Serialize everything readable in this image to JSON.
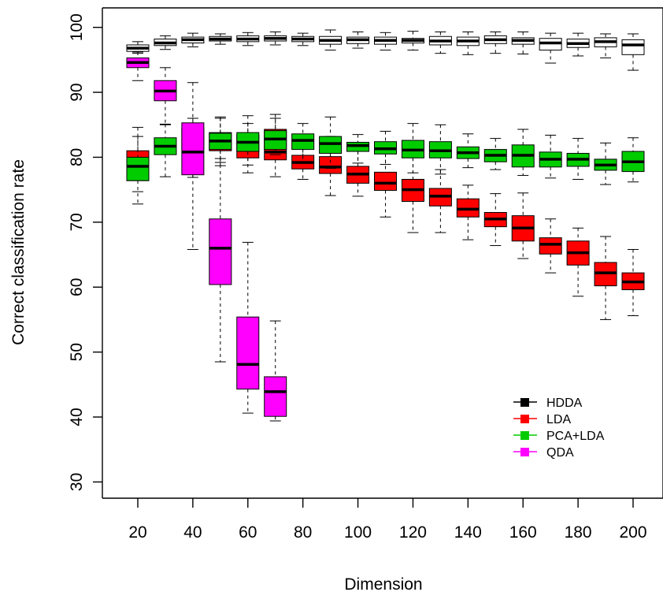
{
  "chart_data": {
    "type": "boxplot",
    "xlabel": "Dimension",
    "ylabel": "Correct classification rate",
    "ylim": [
      27.5,
      103
    ],
    "yticks": [
      30,
      40,
      50,
      60,
      70,
      80,
      90,
      100
    ],
    "x_positions": [
      20,
      30,
      40,
      50,
      60,
      70,
      80,
      90,
      100,
      110,
      120,
      130,
      140,
      150,
      160,
      170,
      180,
      190,
      200
    ],
    "xtick_labels": [
      "20",
      "40",
      "60",
      "80",
      "100",
      "120",
      "140",
      "160",
      "180",
      "200"
    ],
    "xtick_values": [
      20,
      40,
      60,
      80,
      100,
      120,
      140,
      160,
      180,
      200
    ],
    "legend": {
      "position": "bottom-right"
    },
    "series": [
      {
        "name": "HDDA",
        "color": "#ffffff",
        "legend_color": "#000000",
        "boxes": [
          {
            "x": 20,
            "min": 96.0,
            "q1": 96.3,
            "median": 96.8,
            "q3": 97.3,
            "max": 97.8
          },
          {
            "x": 30,
            "min": 96.6,
            "q1": 97.2,
            "median": 97.6,
            "q3": 98.2,
            "max": 98.7
          },
          {
            "x": 40,
            "min": 97.0,
            "q1": 97.6,
            "median": 98.1,
            "q3": 98.5,
            "max": 99.1
          },
          {
            "x": 50,
            "min": 97.4,
            "q1": 97.9,
            "median": 98.2,
            "q3": 98.6,
            "max": 99.0
          },
          {
            "x": 60,
            "min": 97.2,
            "q1": 97.8,
            "median": 98.2,
            "q3": 98.7,
            "max": 99.2
          },
          {
            "x": 70,
            "min": 97.3,
            "q1": 97.9,
            "median": 98.3,
            "q3": 98.7,
            "max": 99.3
          },
          {
            "x": 80,
            "min": 97.2,
            "q1": 97.8,
            "median": 98.2,
            "q3": 98.6,
            "max": 99.1
          },
          {
            "x": 90,
            "min": 96.5,
            "q1": 97.4,
            "median": 98.0,
            "q3": 98.6,
            "max": 99.6
          },
          {
            "x": 100,
            "min": 96.8,
            "q1": 97.5,
            "median": 98.1,
            "q3": 98.5,
            "max": 99.3
          },
          {
            "x": 110,
            "min": 96.5,
            "q1": 97.4,
            "median": 98.0,
            "q3": 98.5,
            "max": 99.2
          },
          {
            "x": 120,
            "min": 96.5,
            "q1": 97.6,
            "median": 98.0,
            "q3": 98.3,
            "max": 99.4
          },
          {
            "x": 130,
            "min": 96.0,
            "q1": 97.3,
            "median": 97.9,
            "q3": 98.6,
            "max": 99.3
          },
          {
            "x": 140,
            "min": 95.8,
            "q1": 97.2,
            "median": 97.9,
            "q3": 98.5,
            "max": 99.3
          },
          {
            "x": 150,
            "min": 96.0,
            "q1": 97.5,
            "median": 98.1,
            "q3": 98.7,
            "max": 99.3
          },
          {
            "x": 160,
            "min": 95.9,
            "q1": 97.4,
            "median": 98.0,
            "q3": 98.4,
            "max": 99.3
          },
          {
            "x": 170,
            "min": 94.5,
            "q1": 96.5,
            "median": 97.6,
            "q3": 98.3,
            "max": 99.1
          },
          {
            "x": 180,
            "min": 95.6,
            "q1": 96.9,
            "median": 97.5,
            "q3": 98.2,
            "max": 99.1
          },
          {
            "x": 190,
            "min": 95.3,
            "q1": 97.0,
            "median": 97.8,
            "q3": 98.4,
            "max": 99.0
          },
          {
            "x": 200,
            "min": 93.4,
            "q1": 95.8,
            "median": 97.3,
            "q3": 98.1,
            "max": 99.0
          }
        ]
      },
      {
        "name": "LDA",
        "color": "#ff0000",
        "boxes": [
          {
            "x": 20,
            "min": 72.8,
            "q1": 76.4,
            "median": 78.6,
            "q3": 81.0,
            "max": 84.6
          },
          {
            "x": 50,
            "min": 79.2,
            "q1": 81.0,
            "median": 82.2,
            "q3": 83.8,
            "max": 86.0
          },
          {
            "x": 60,
            "min": 77.6,
            "q1": 79.9,
            "median": 81.5,
            "q3": 83.4,
            "max": 86.4
          },
          {
            "x": 70,
            "min": 77.0,
            "q1": 79.6,
            "median": 80.8,
            "q3": 84.3,
            "max": 86.6
          },
          {
            "x": 80,
            "min": 76.6,
            "q1": 78.2,
            "median": 79.2,
            "q3": 80.3,
            "max": 83.5
          },
          {
            "x": 90,
            "min": 74.1,
            "q1": 77.5,
            "median": 78.5,
            "q3": 80.1,
            "max": 83.2
          },
          {
            "x": 100,
            "min": 74.0,
            "q1": 76.0,
            "median": 77.4,
            "q3": 78.6,
            "max": 81.0
          },
          {
            "x": 110,
            "min": 70.8,
            "q1": 74.9,
            "median": 76.0,
            "q3": 77.7,
            "max": 80.6
          },
          {
            "x": 120,
            "min": 68.4,
            "q1": 73.2,
            "median": 75.0,
            "q3": 76.6,
            "max": 80.9
          },
          {
            "x": 130,
            "min": 68.4,
            "q1": 72.5,
            "median": 74.0,
            "q3": 75.2,
            "max": 78.1
          },
          {
            "x": 140,
            "min": 67.3,
            "q1": 70.8,
            "median": 72.0,
            "q3": 73.6,
            "max": 75.7
          },
          {
            "x": 150,
            "min": 66.4,
            "q1": 69.3,
            "median": 70.5,
            "q3": 71.5,
            "max": 74.4
          },
          {
            "x": 160,
            "min": 64.4,
            "q1": 67.1,
            "median": 69.1,
            "q3": 71.0,
            "max": 74.5
          },
          {
            "x": 170,
            "min": 62.2,
            "q1": 65.1,
            "median": 66.6,
            "q3": 67.6,
            "max": 70.5
          },
          {
            "x": 180,
            "min": 58.6,
            "q1": 63.4,
            "median": 65.3,
            "q3": 67.1,
            "max": 69.1
          },
          {
            "x": 190,
            "min": 55.0,
            "q1": 60.2,
            "median": 62.2,
            "q3": 63.8,
            "max": 67.8
          },
          {
            "x": 200,
            "min": 55.6,
            "q1": 59.6,
            "median": 60.8,
            "q3": 62.2,
            "max": 65.8
          }
        ]
      },
      {
        "name": "PCA+LDA",
        "color": "#00cc00",
        "boxes": [
          {
            "x": 20,
            "min": 74.7,
            "q1": 76.4,
            "median": 78.6,
            "q3": 80.0,
            "max": 83.2
          },
          {
            "x": 30,
            "min": 77.0,
            "q1": 80.4,
            "median": 81.7,
            "q3": 83.0,
            "max": 85.1
          },
          {
            "x": 40,
            "min": 76.9,
            "q1": 81.2,
            "median": 82.9,
            "q3": 84.4,
            "max": 86.0
          },
          {
            "x": 50,
            "min": 78.7,
            "q1": 81.2,
            "median": 82.5,
            "q3": 83.7,
            "max": 86.2
          },
          {
            "x": 60,
            "min": 78.8,
            "q1": 80.9,
            "median": 82.3,
            "q3": 83.8,
            "max": 85.2
          },
          {
            "x": 70,
            "min": 80.4,
            "q1": 81.2,
            "median": 82.8,
            "q3": 84.1,
            "max": 86.0
          },
          {
            "x": 80,
            "min": 79.1,
            "q1": 81.2,
            "median": 82.6,
            "q3": 83.6,
            "max": 85.2
          },
          {
            "x": 90,
            "min": 78.3,
            "q1": 80.6,
            "median": 82.1,
            "q3": 83.2,
            "max": 86.2
          },
          {
            "x": 100,
            "min": 79.1,
            "q1": 80.9,
            "median": 81.8,
            "q3": 82.3,
            "max": 83.5
          },
          {
            "x": 110,
            "min": 78.9,
            "q1": 80.5,
            "median": 81.3,
            "q3": 82.4,
            "max": 84.0
          },
          {
            "x": 120,
            "min": 77.6,
            "q1": 79.9,
            "median": 81.1,
            "q3": 82.6,
            "max": 85.2
          },
          {
            "x": 130,
            "min": 77.4,
            "q1": 79.9,
            "median": 81.0,
            "q3": 82.4,
            "max": 85.0
          },
          {
            "x": 140,
            "min": 78.4,
            "q1": 79.8,
            "median": 80.7,
            "q3": 81.6,
            "max": 83.6
          },
          {
            "x": 150,
            "min": 78.1,
            "q1": 79.3,
            "median": 80.3,
            "q3": 81.2,
            "max": 82.9
          },
          {
            "x": 160,
            "min": 77.2,
            "q1": 78.5,
            "median": 80.3,
            "q3": 81.9,
            "max": 84.3
          },
          {
            "x": 170,
            "min": 76.8,
            "q1": 78.5,
            "median": 79.7,
            "q3": 80.8,
            "max": 83.4
          },
          {
            "x": 180,
            "min": 76.6,
            "q1": 78.6,
            "median": 79.7,
            "q3": 80.6,
            "max": 82.9
          },
          {
            "x": 190,
            "min": 75.8,
            "q1": 78.0,
            "median": 78.8,
            "q3": 79.7,
            "max": 82.2
          },
          {
            "x": 200,
            "min": 76.2,
            "q1": 77.8,
            "median": 79.3,
            "q3": 80.9,
            "max": 83.0
          }
        ]
      },
      {
        "name": "QDA",
        "color": "#ff00ff",
        "boxes": [
          {
            "x": 20,
            "min": 91.8,
            "q1": 93.8,
            "median": 94.6,
            "q3": 95.3,
            "max": 96.2
          },
          {
            "x": 30,
            "min": 85.0,
            "q1": 88.7,
            "median": 90.2,
            "q3": 91.8,
            "max": 93.8
          },
          {
            "x": 40,
            "min": 65.8,
            "q1": 77.3,
            "median": 80.8,
            "q3": 85.3,
            "max": 91.5
          },
          {
            "x": 50,
            "min": 48.5,
            "q1": 60.4,
            "median": 66.0,
            "q3": 70.5,
            "max": 79.8
          },
          {
            "x": 60,
            "min": 40.6,
            "q1": 44.3,
            "median": 48.1,
            "q3": 55.4,
            "max": 66.9
          },
          {
            "x": 70,
            "min": 39.4,
            "q1": 40.1,
            "median": 43.9,
            "q3": 46.2,
            "max": 54.8
          }
        ]
      }
    ]
  }
}
